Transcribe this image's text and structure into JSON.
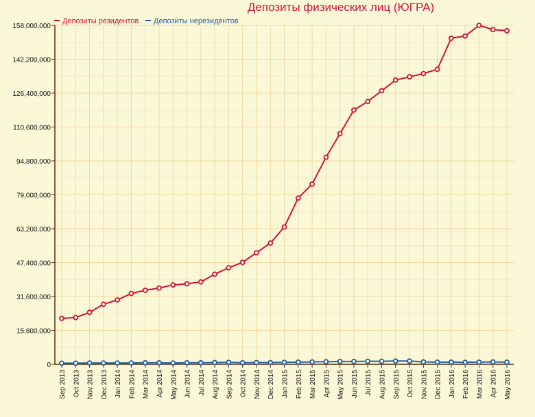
{
  "chart_data": {
    "type": "line",
    "title": "Депозиты физических лиц (ЮГРА)",
    "categories": [
      "Sep 2013",
      "Oct 2013",
      "Nov 2013",
      "Dec 2013",
      "Jan 2014",
      "Feb 2014",
      "Mar 2014",
      "Apr 2014",
      "May 2014",
      "Jun 2014",
      "Jul 2014",
      "Aug 2014",
      "Sep 2014",
      "Oct 2014",
      "Nov 2014",
      "Dec 2014",
      "Jan 2015",
      "Feb 2015",
      "Mar 2015",
      "Apr 2015",
      "May 2015",
      "Jun 2015",
      "Jul 2015",
      "Aug 2015",
      "Sep 2015",
      "Oct 2015",
      "Nov 2015",
      "Dec 2015",
      "Jan 2016",
      "Feb 2016",
      "Mar 2016",
      "Apr 2016",
      "May 2016"
    ],
    "y_ticks": [
      "0",
      "15,800,000",
      "31,600,000",
      "47,400,000",
      "63,200,000",
      "79,000,000",
      "94,800,000",
      "110,600,000",
      "126,400,000",
      "142,200,000",
      "158,000,000"
    ],
    "y_tick_values": [
      0,
      15800000,
      31600000,
      47400000,
      63200000,
      79000000,
      94800000,
      110600000,
      126400000,
      142200000,
      158000000
    ],
    "ylim": [
      0,
      158000000
    ],
    "grid": true,
    "legend_position": "top-left",
    "series": [
      {
        "name": "Депозиты резидентов",
        "color": "#d0103a",
        "values": [
          21400000,
          21800000,
          24200000,
          28000000,
          30000000,
          33000000,
          34500000,
          35500000,
          37000000,
          37500000,
          38400000,
          42000000,
          45000000,
          47500000,
          52000000,
          56500000,
          64000000,
          77500000,
          84000000,
          96500000,
          107500000,
          118500000,
          122500000,
          127500000,
          132500000,
          134000000,
          135500000,
          137500000,
          152000000,
          153000000,
          158000000,
          156000000,
          155500000
        ]
      },
      {
        "name": "Депозиты нерезидентов",
        "color": "#1f5fa8",
        "values": [
          500000,
          500000,
          600000,
          600000,
          600000,
          600000,
          700000,
          700000,
          600000,
          700000,
          700000,
          800000,
          900000,
          700000,
          800000,
          800000,
          900000,
          1000000,
          1100000,
          1200000,
          1300000,
          1300000,
          1400000,
          1400000,
          1500000,
          1500000,
          1100000,
          1000000,
          1000000,
          900000,
          1000000,
          1100000,
          1000000
        ]
      }
    ]
  }
}
